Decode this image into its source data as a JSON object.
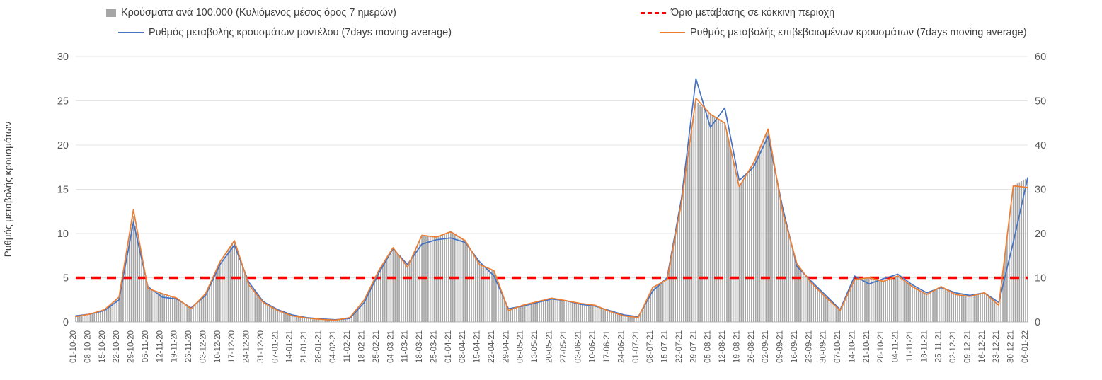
{
  "chart_data": {
    "type": "bar",
    "title": "",
    "legend_position": "top",
    "grid": true,
    "x_tick_labels": [
      "01-10-20",
      "08-10-20",
      "15-10-20",
      "22-10-20",
      "29-10-20",
      "05-11-20",
      "12-11-20",
      "19-11-20",
      "26-11-20",
      "03-12-20",
      "10-12-20",
      "17-12-20",
      "24-12-20",
      "31-12-20",
      "07-01-21",
      "14-01-21",
      "21-01-21",
      "28-01-21",
      "04-02-21",
      "11-02-21",
      "18-02-21",
      "25-02-21",
      "04-03-21",
      "11-03-21",
      "18-03-21",
      "25-03-21",
      "01-04-21",
      "08-04-21",
      "15-04-21",
      "22-04-21",
      "29-04-21",
      "06-05-21",
      "13-05-21",
      "20-05-21",
      "27-05-21",
      "03-06-21",
      "10-06-21",
      "17-06-21",
      "24-06-21",
      "01-07-21",
      "08-07-21",
      "15-07-21",
      "22-07-21",
      "29-07-21",
      "05-08-21",
      "12-08-21",
      "19-08-21",
      "26-08-21",
      "02-09-21",
      "09-09-21",
      "16-09-21",
      "23-09-21",
      "30-09-21",
      "07-10-21",
      "14-10-21",
      "21-10-21",
      "28-10-21",
      "04-11-21",
      "11-11-21",
      "18-11-21",
      "25-11-21",
      "02-12-21",
      "09-12-21",
      "16-12-21",
      "23-12-21",
      "30-12-21",
      "06-01-22"
    ],
    "bars": {
      "name": "Κρούσματα ανά 100.000 (Κυλιόμενος μέσος όρος 7 ημερών)",
      "axis": "right",
      "color": "#a6a6a6",
      "values": [
        1.2,
        1.8,
        2.8,
        5.6,
        24.0,
        7.6,
        6.4,
        5.4,
        3.0,
        6.4,
        13.6,
        18.4,
        8.4,
        4.4,
        2.6,
        1.4,
        0.9,
        0.6,
        0.4,
        1.0,
        5.0,
        11.6,
        16.8,
        12.4,
        19.6,
        19.2,
        20.4,
        18.4,
        13.0,
        11.6,
        2.6,
        3.8,
        4.6,
        5.4,
        4.8,
        4.2,
        3.8,
        2.4,
        1.4,
        1.0,
        7.8,
        9.6,
        27.0,
        50.0,
        47.0,
        45.0,
        30.6,
        36.0,
        43.6,
        25.0,
        13.2,
        8.8,
        5.6,
        2.6,
        9.6,
        10.0,
        9.2,
        10.4,
        8.0,
        6.2,
        8.0,
        6.2,
        5.8,
        6.6,
        3.8,
        30.8,
        32.6
      ]
    },
    "series": [
      {
        "name": "Ρυθμός μεταβολής κρουσμάτων μοντέλου (7days moving average)",
        "axis": "left",
        "color": "#4472c4",
        "values": [
          0.7,
          0.9,
          1.3,
          2.5,
          11.3,
          4.0,
          2.8,
          2.6,
          1.6,
          3.0,
          6.5,
          8.7,
          4.5,
          2.3,
          1.4,
          0.8,
          0.5,
          0.35,
          0.25,
          0.4,
          2.2,
          5.5,
          8.3,
          6.5,
          8.8,
          9.3,
          9.5,
          9.0,
          6.8,
          5.2,
          1.5,
          1.8,
          2.2,
          2.6,
          2.4,
          2.0,
          1.8,
          1.3,
          0.8,
          0.6,
          3.5,
          5.0,
          14.0,
          27.5,
          22.0,
          24.2,
          16.0,
          17.5,
          21.0,
          13.0,
          6.3,
          4.6,
          3.0,
          1.4,
          5.2,
          4.3,
          4.9,
          5.4,
          4.2,
          3.3,
          3.9,
          3.3,
          3.0,
          3.3,
          2.2,
          9.0,
          16.3
        ]
      },
      {
        "name": "Ρυθμός μεταβολής επιβεβαιωμένων κρουσμάτων (7days moving average)",
        "axis": "left",
        "color": "#ed7d31",
        "values": [
          0.6,
          0.9,
          1.4,
          2.8,
          12.7,
          3.8,
          3.2,
          2.7,
          1.5,
          3.2,
          6.8,
          9.2,
          4.2,
          2.2,
          1.3,
          0.7,
          0.45,
          0.3,
          0.2,
          0.5,
          2.5,
          5.8,
          8.4,
          6.2,
          9.8,
          9.6,
          10.2,
          9.2,
          6.5,
          5.8,
          1.3,
          1.9,
          2.3,
          2.7,
          2.4,
          2.1,
          1.9,
          1.2,
          0.7,
          0.5,
          3.9,
          4.8,
          13.5,
          25.3,
          23.5,
          22.5,
          15.3,
          18.0,
          21.8,
          12.5,
          6.6,
          4.4,
          2.8,
          1.3,
          4.8,
          5.0,
          4.6,
          5.2,
          4.0,
          3.1,
          4.0,
          3.1,
          2.9,
          3.3,
          1.9,
          15.4,
          15.2
        ]
      }
    ],
    "threshold": {
      "name": "Όριο μετάβασης σε κόκκινη περιοχή",
      "axis": "left",
      "value": 5,
      "color": "#ff0000",
      "style": "dashed"
    },
    "left_axis": {
      "label": "Ρυθμός μεταβολής κρουσμάτων",
      "min": 0,
      "max": 30,
      "ticks": [
        0,
        5,
        10,
        15,
        20,
        25,
        30
      ]
    },
    "right_axis": {
      "label": "",
      "min": 0,
      "max": 60,
      "ticks": [
        0,
        10,
        20,
        30,
        40,
        50,
        60
      ]
    }
  }
}
